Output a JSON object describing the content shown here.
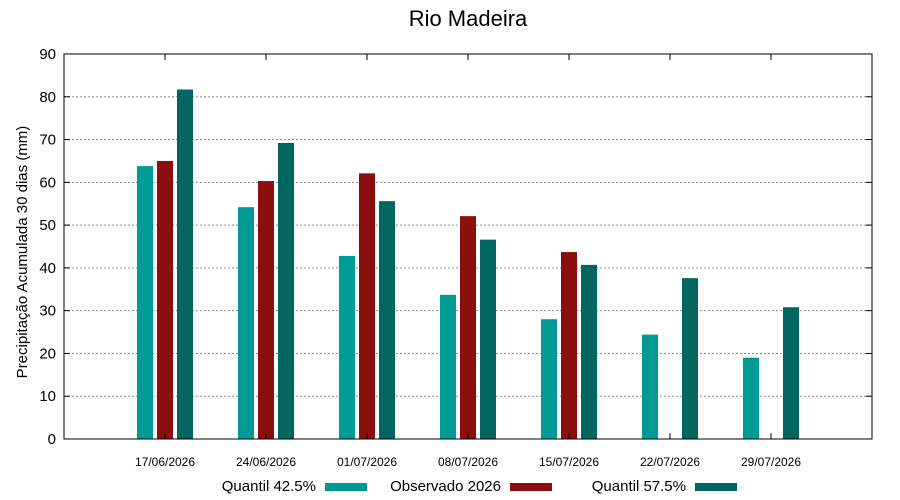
{
  "chart_data": {
    "type": "bar",
    "title": "Rio Madeira",
    "xlabel": "",
    "ylabel": "Precipitação Acumulada 30 dias (mm)",
    "ylim": [
      0,
      90
    ],
    "yticks": [
      0,
      10,
      20,
      30,
      40,
      50,
      60,
      70,
      80,
      90
    ],
    "grid": true,
    "legend_position": "bottom",
    "categories": [
      "17/06/2026",
      "24/06/2026",
      "01/07/2026",
      "08/07/2026",
      "15/07/2026",
      "22/07/2026",
      "29/07/2026"
    ],
    "series": [
      {
        "name": "Quantil 42.5%",
        "color": "#009b95",
        "values": [
          63.8,
          54.2,
          42.8,
          33.7,
          28.0,
          24.4,
          19.0
        ]
      },
      {
        "name": "Observado 2026",
        "color": "#8b0f0f",
        "values": [
          65.0,
          60.3,
          62.1,
          52.1,
          43.7,
          null,
          null
        ]
      },
      {
        "name": "Quantil 57.5%",
        "color": "#00665f",
        "values": [
          81.7,
          69.2,
          55.6,
          46.6,
          40.7,
          37.6,
          30.8
        ]
      }
    ]
  }
}
